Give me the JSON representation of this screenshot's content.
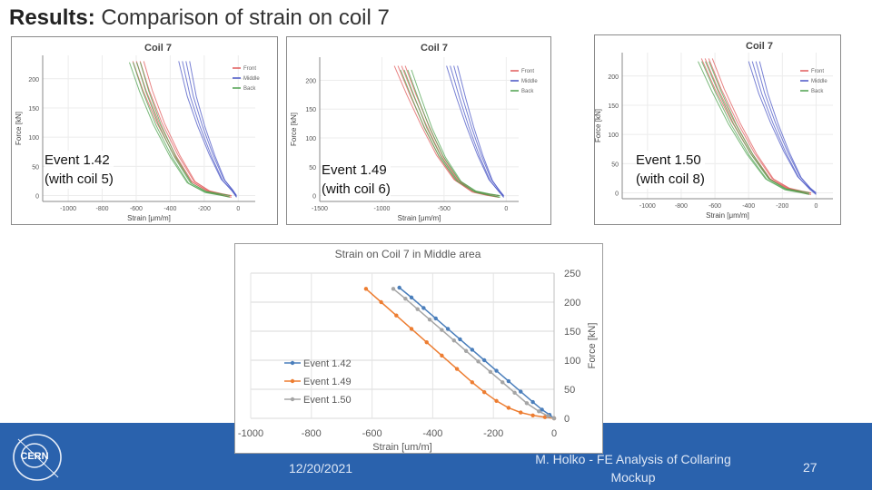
{
  "slide": {
    "title_bold": "Results:",
    "title_rest": " Comparison of strain on coil 7",
    "date": "12/20/2021",
    "author_line1": "M. Holko - FE Analysis of Collaring",
    "author_line2": "Mockup",
    "page_number": "27",
    "logo_text": "CERN"
  },
  "colors": {
    "footer": "#2a62ad",
    "front": "#e05a5a",
    "middle": "#4a56c6",
    "back": "#4ea14e",
    "event142": "#4a7ebb",
    "event149": "#ed7d31",
    "event150": "#a5a5a5"
  },
  "chart_data": [
    {
      "type": "line",
      "title": "Coil 7",
      "event_label_line1": "Event 1.42",
      "event_label_line2": "(with coil 5)",
      "xlabel": "Strain [μm/m]",
      "ylabel": "Force [kN]",
      "xlim": [
        -1150,
        100
      ],
      "ylim": [
        -10,
        240
      ],
      "xticks": [
        -1000,
        -800,
        -600,
        -400,
        -200,
        0
      ],
      "yticks": [
        0,
        50,
        100,
        150,
        200
      ],
      "legend": [
        "Front",
        "Middle",
        "Back"
      ],
      "series": [
        {
          "name": "Front",
          "x": [
            -620,
            -560,
            -480,
            -380,
            -280,
            -180,
            -100,
            -40
          ],
          "y": [
            230,
            180,
            125,
            70,
            25,
            8,
            3,
            0
          ]
        },
        {
          "name": "Middle",
          "x": [
            -350,
            -300,
            -240,
            -170,
            -100,
            -40,
            -10
          ],
          "y": [
            230,
            170,
            120,
            70,
            28,
            10,
            0
          ]
        },
        {
          "name": "Back",
          "x": [
            -640,
            -580,
            -500,
            -400,
            -300,
            -200,
            -110,
            -50
          ],
          "y": [
            228,
            178,
            122,
            66,
            22,
            7,
            3,
            0
          ]
        }
      ]
    },
    {
      "type": "line",
      "title": "Coil 7",
      "event_label_line1": "Event 1.49",
      "event_label_line2": "(with coil 6)",
      "xlabel": "Strain [μm/m]",
      "ylabel": "Force [kN]",
      "xlim": [
        -1500,
        100
      ],
      "ylim": [
        -10,
        240
      ],
      "xticks": [
        -1500,
        -1000,
        -500,
        0
      ],
      "yticks": [
        0,
        50,
        100,
        150,
        200
      ],
      "legend": [
        "Front",
        "Middle",
        "Back"
      ],
      "series": [
        {
          "name": "Front",
          "x": [
            -900,
            -800,
            -680,
            -560,
            -420,
            -280,
            -160,
            -60
          ],
          "y": [
            225,
            175,
            120,
            70,
            28,
            8,
            3,
            0
          ]
        },
        {
          "name": "Middle",
          "x": [
            -480,
            -400,
            -320,
            -230,
            -140,
            -60,
            -20
          ],
          "y": [
            225,
            170,
            120,
            70,
            28,
            8,
            0
          ]
        },
        {
          "name": "Back",
          "x": [
            -850,
            -760,
            -660,
            -540,
            -400,
            -260,
            -140,
            -50
          ],
          "y": [
            218,
            170,
            118,
            68,
            26,
            8,
            3,
            0
          ]
        }
      ]
    },
    {
      "type": "line",
      "title": "Coil 7",
      "event_label_line1": "Event 1.50",
      "event_label_line2": "(with coil 8)",
      "xlabel": "Strain [μm/m]",
      "ylabel": "Force [kN]",
      "xlim": [
        -1150,
        100
      ],
      "ylim": [
        -10,
        240
      ],
      "xticks": [
        -1000,
        -800,
        -600,
        -400,
        -200,
        0
      ],
      "yticks": [
        0,
        50,
        100,
        150,
        200
      ],
      "legend": [
        "Front",
        "Middle",
        "Back"
      ],
      "series": [
        {
          "name": "Front",
          "x": [
            -680,
            -600,
            -500,
            -390,
            -280,
            -170,
            -90,
            -30
          ],
          "y": [
            230,
            178,
            122,
            68,
            25,
            8,
            3,
            0
          ]
        },
        {
          "name": "Middle",
          "x": [
            -400,
            -340,
            -270,
            -190,
            -110,
            -40,
            0
          ],
          "y": [
            225,
            170,
            120,
            70,
            28,
            8,
            0
          ]
        },
        {
          "name": "Back",
          "x": [
            -700,
            -620,
            -520,
            -410,
            -300,
            -190,
            -100,
            -40
          ],
          "y": [
            225,
            175,
            118,
            66,
            24,
            7,
            3,
            0
          ]
        }
      ]
    },
    {
      "type": "line",
      "title": "Strain on Coil 7 in Middle area",
      "xlabel": "Strain [um/m]",
      "ylabel": "Force [kN]",
      "xlim": [
        -1000,
        0
      ],
      "ylim": [
        0,
        250
      ],
      "xticks": [
        -1000,
        -800,
        -600,
        -400,
        -200,
        0
      ],
      "xtick_labels": [
        "-1000",
        "-800",
        "-600",
        "-400",
        "-200",
        "0"
      ],
      "yticks": [
        0,
        50,
        100,
        150,
        200,
        250
      ],
      "ytick_labels": [
        "0",
        "50",
        "100",
        "150",
        "200",
        "250"
      ],
      "legend": [
        "Event 1.42",
        "Event 1.49",
        "Event 1.50"
      ],
      "series": [
        {
          "name": "Event 1.42",
          "x": [
            -510,
            -470,
            -430,
            -390,
            -350,
            -310,
            -270,
            -230,
            -190,
            -150,
            -110,
            -70,
            -40,
            -15,
            0
          ],
          "y": [
            225,
            208,
            190,
            172,
            154,
            136,
            118,
            100,
            82,
            64,
            46,
            28,
            15,
            6,
            0
          ]
        },
        {
          "name": "Event 1.49",
          "x": [
            -620,
            -570,
            -520,
            -470,
            -420,
            -370,
            -320,
            -270,
            -230,
            -190,
            -150,
            -110,
            -70,
            -30,
            0
          ],
          "y": [
            223,
            200,
            177,
            154,
            131,
            108,
            85,
            62,
            45,
            30,
            18,
            10,
            5,
            2,
            0
          ]
        },
        {
          "name": "Event 1.50",
          "x": [
            -530,
            -490,
            -450,
            -410,
            -370,
            -330,
            -290,
            -250,
            -210,
            -170,
            -130,
            -90,
            -50,
            -20,
            0
          ],
          "y": [
            223,
            206,
            188,
            170,
            152,
            134,
            116,
            98,
            80,
            62,
            44,
            26,
            12,
            4,
            0
          ]
        }
      ]
    }
  ]
}
